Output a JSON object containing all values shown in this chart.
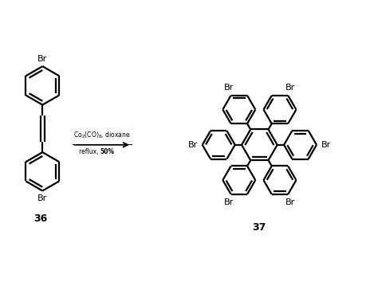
{
  "background_color": "#ffffff",
  "line_color": "#000000",
  "line_width": 1.6,
  "reagent_line1": "Co$_2$(CO)$_8$, dioxane",
  "reagent_line2": "reflux, ",
  "reagent_bold": "50%",
  "label_36": "36",
  "label_37": "37",
  "br_label": "Br",
  "figsize": [
    4.74,
    3.59
  ],
  "dpi": 100
}
